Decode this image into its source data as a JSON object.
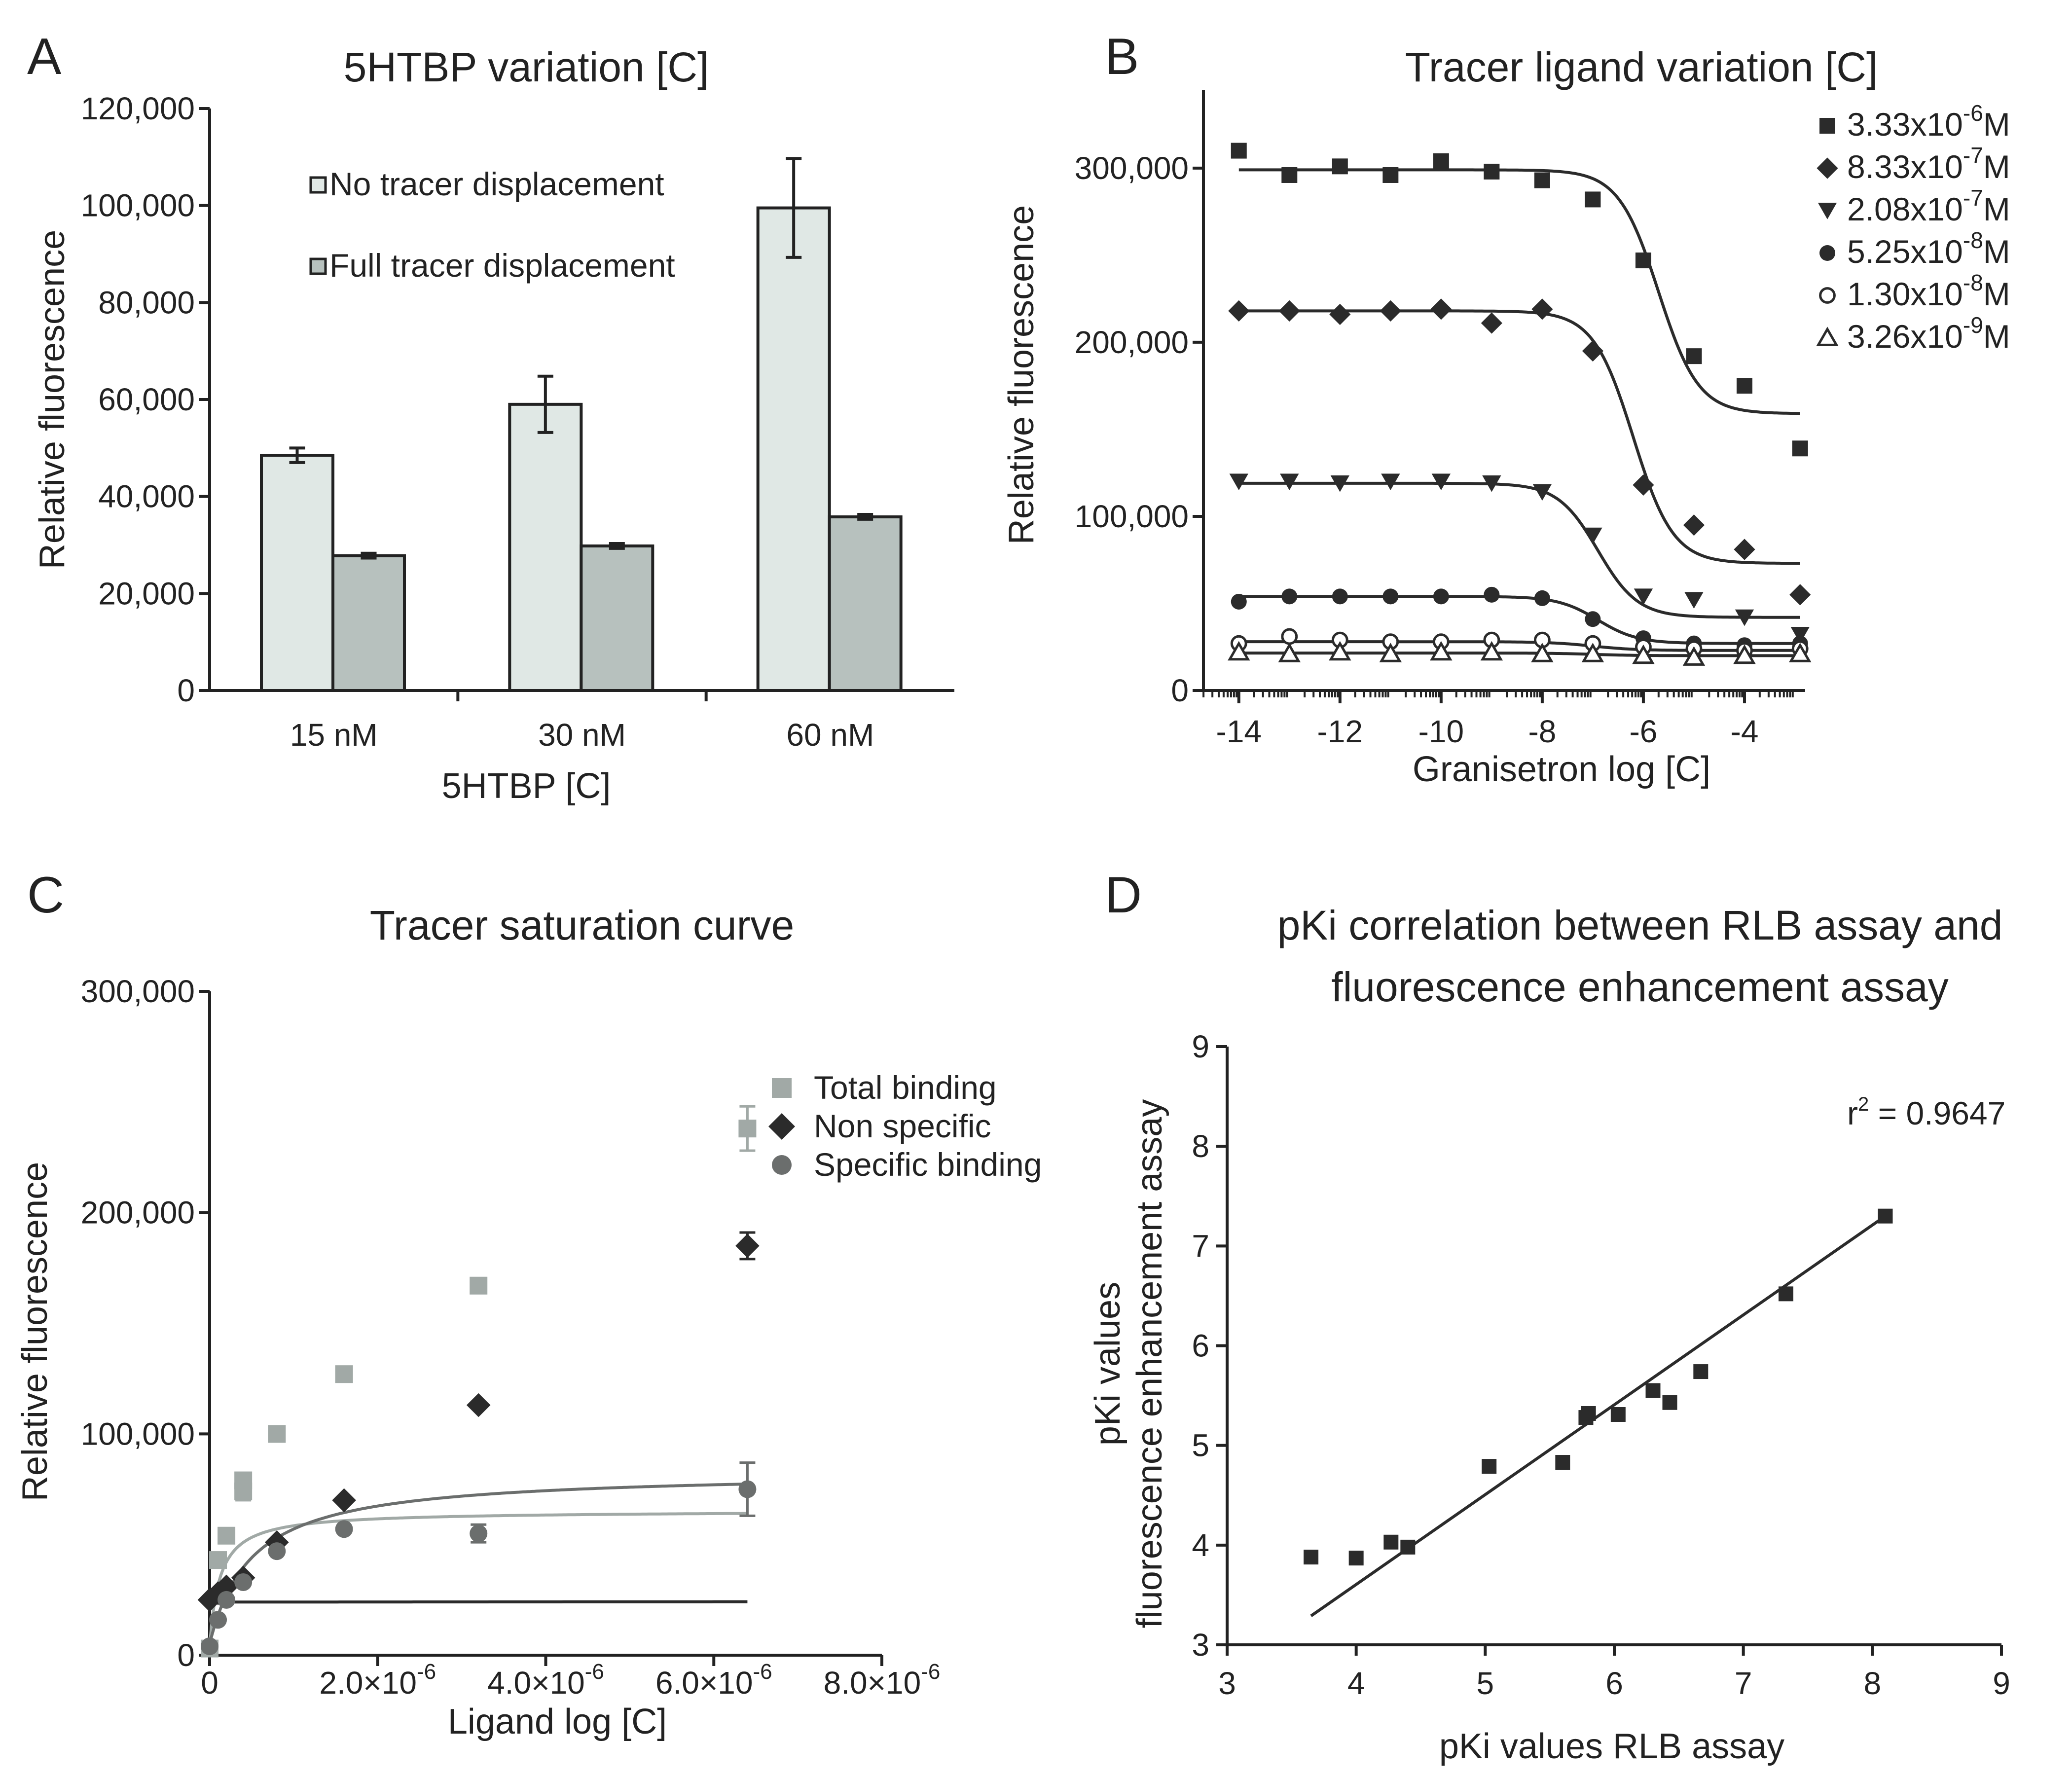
{
  "panels": {
    "A": "A",
    "B": "B",
    "C": "C",
    "D": "D"
  },
  "chart_data": [
    {
      "panel": "A",
      "type": "bar",
      "title": "5HTBP variation [C]",
      "xlabel": "5HTBP [C]",
      "ylabel": "Relative fluorescence",
      "categories": [
        "15 nM",
        "30 nM",
        "60 nM"
      ],
      "series": [
        {
          "name": "No tracer displacement",
          "color": "#e0e8e5",
          "values": [
            48500,
            59000,
            99500
          ],
          "errors": [
            1500,
            5800,
            10200
          ]
        },
        {
          "name": "Full tracer displacement",
          "color": "#b7c1be",
          "values": [
            27800,
            29800,
            35800
          ],
          "errors": [
            500,
            500,
            500
          ]
        }
      ],
      "ylim": [
        0,
        120000
      ],
      "yticks": [
        0,
        20000,
        40000,
        60000,
        80000,
        100000,
        120000
      ],
      "ytick_labels": [
        "0",
        "20,000",
        "40,000",
        "60,000",
        "80,000",
        "100,000",
        "120,000"
      ]
    },
    {
      "panel": "B",
      "type": "scatter",
      "title": "Tracer ligand variation [C]",
      "xlabel": "Granisetron log [C]",
      "ylabel": "Relative fluorescence",
      "x": [
        -14,
        -13,
        -12,
        -11,
        -10,
        -9,
        -8,
        -7,
        -6,
        -5,
        -4,
        -2.9
      ],
      "xlim": [
        -14.7,
        -2.8
      ],
      "ylim": [
        0,
        345000
      ],
      "xticks": [
        -14,
        -12,
        -10,
        -8,
        -6,
        -4
      ],
      "xtick_labels": [
        "-14",
        "-12",
        "-10",
        "-8",
        "-6",
        "-4"
      ],
      "yticks": [
        0,
        100000,
        200000,
        300000
      ],
      "ytick_labels": [
        "0",
        "100,000",
        "200,000",
        "300,000"
      ],
      "series": [
        {
          "name": "3.33x10",
          "exp": "-6",
          "unit": "M",
          "marker": "square",
          "values": [
            310000,
            296000,
            301000,
            296000,
            304000,
            298000,
            293000,
            282000,
            247000,
            192000,
            175000,
            139000
          ],
          "fit": {
            "top": 299000,
            "bottom": 159000,
            "logEC50": -5.7,
            "slope": -1.1
          }
        },
        {
          "name": "8.33x10",
          "exp": "-7",
          "unit": "M",
          "marker": "diamond",
          "values": [
            218000,
            218000,
            216000,
            218000,
            219000,
            211000,
            219000,
            195000,
            118000,
            95000,
            81000,
            55000
          ],
          "fit": {
            "top": 218000,
            "bottom": 73000,
            "logEC50": -6.2,
            "slope": -1.1
          }
        },
        {
          "name": "2.08x10",
          "exp": "-7",
          "unit": "M",
          "marker": "triangle-down",
          "values": [
            120000,
            120000,
            119000,
            120000,
            120000,
            119000,
            114000,
            89000,
            54000,
            52000,
            42000,
            32000
          ],
          "fit": {
            "top": 119000,
            "bottom": 42000,
            "logEC50": -6.9,
            "slope": -1.1
          }
        },
        {
          "name": "5.25x10",
          "exp": "-8",
          "unit": "M",
          "marker": "circle",
          "values": [
            51000,
            54000,
            54000,
            54000,
            54000,
            55000,
            53000,
            41000,
            30000,
            27000,
            26000,
            27000
          ],
          "fit": {
            "top": 54000,
            "bottom": 27000,
            "logEC50": -6.9,
            "slope": -1.1
          }
        },
        {
          "name": "1.30x10",
          "exp": "-8",
          "unit": "M",
          "marker": "circle-open",
          "values": [
            27000,
            31000,
            29000,
            28000,
            28000,
            29000,
            29000,
            27000,
            25000,
            24000,
            23000,
            24000
          ],
          "fit": {
            "top": 28000,
            "bottom": 23000,
            "logEC50": -7.0,
            "slope": -1.0
          }
        },
        {
          "name": "3.26x10",
          "exp": "-9",
          "unit": "M",
          "marker": "triangle-open",
          "values": [
            22000,
            21000,
            22000,
            21000,
            22000,
            22000,
            21000,
            21000,
            20000,
            19000,
            20000,
            21000
          ],
          "fit": {
            "top": 21500,
            "bottom": 20000,
            "logEC50": -7.0,
            "slope": -1.0
          }
        }
      ]
    },
    {
      "panel": "C",
      "type": "scatter",
      "title": "Tracer saturation curve",
      "xlabel": "Ligand log [C]",
      "ylabel": "Relative fluorescence",
      "xlim": [
        0,
        8e-06
      ],
      "ylim": [
        0,
        300000
      ],
      "xticks": [
        0,
        2e-06,
        4e-06,
        6e-06,
        8e-06
      ],
      "xtick_labels": [
        {
          "mant": "0",
          "exp": ""
        },
        {
          "mant": "2.0×10",
          "exp": "-6"
        },
        {
          "mant": "4.0×10",
          "exp": "-6"
        },
        {
          "mant": "6.0×10",
          "exp": "-6"
        },
        {
          "mant": "8.0×10",
          "exp": "-6"
        }
      ],
      "yticks": [
        0,
        100000,
        200000,
        300000
      ],
      "ytick_labels": [
        "0",
        "100,000",
        "200,000",
        "300,000"
      ],
      "series": [
        {
          "name": "Total binding",
          "color": "#a1a9a6",
          "marker": "square",
          "x": [
            0.0,
            1e-07,
            2e-07,
            4e-07,
            4e-07,
            8e-07,
            1.6e-06,
            3.2e-06,
            6.4e-06
          ],
          "values": [
            3000,
            43000,
            54000,
            79000,
            74000,
            100000,
            127000,
            167000,
            238000
          ],
          "errors": [
            0,
            0,
            0,
            0,
            4000,
            0,
            0,
            0,
            10000
          ],
          "fit": {
            "bmax": 61000,
            "kd": 1.2e-07,
            "ns": 0.0284,
            "b0": 4000
          }
        },
        {
          "name": "Non specific",
          "color": "#2b2b2b",
          "marker": "diamond",
          "x": [
            0.0,
            1e-07,
            2e-07,
            4e-07,
            8e-07,
            1.6e-06,
            3.2e-06,
            6.4e-06
          ],
          "values": [
            25000,
            28000,
            31000,
            35000,
            51000,
            70000,
            113000,
            185000
          ],
          "errors": [
            0,
            0,
            0,
            0,
            0,
            0,
            0,
            6000
          ],
          "fit": {
            "slope": 0.0249,
            "intercept": 24000
          }
        },
        {
          "name": "Specific binding",
          "color": "#6b6e6d",
          "marker": "circle",
          "x": [
            0.0,
            1e-07,
            2e-07,
            4e-07,
            8e-07,
            1.6e-06,
            3.2e-06,
            6.4e-06
          ],
          "values": [
            4000,
            16000,
            25000,
            33000,
            47000,
            57000,
            55000,
            75000
          ],
          "errors": [
            0,
            0,
            0,
            0,
            0,
            0,
            4000,
            12000
          ],
          "fit": {
            "bmax": 78000,
            "kd": 5e-07,
            "b0": 5000
          }
        }
      ]
    },
    {
      "panel": "D",
      "type": "scatter",
      "title_lines": [
        "pKi correlation between RLB assay and",
        "fluorescence enhancement assay"
      ],
      "xlabel": "pKi values RLB assay",
      "ylabel_lines": [
        "pKi values",
        "fluorescence enhancement assay"
      ],
      "annotation": {
        "prefix": "r",
        "sup": "2",
        "text": " = 0.9647"
      },
      "xlim": [
        3,
        9
      ],
      "ylim": [
        3,
        9
      ],
      "xticks": [
        3,
        4,
        5,
        6,
        7,
        8,
        9
      ],
      "yticks": [
        3,
        4,
        5,
        6,
        7,
        8,
        9
      ],
      "x": [
        3.65,
        4.0,
        4.27,
        4.4,
        5.03,
        5.6,
        5.78,
        5.8,
        6.03,
        6.3,
        6.43,
        6.67,
        7.33,
        8.1
      ],
      "values": [
        3.88,
        3.87,
        4.03,
        3.98,
        4.79,
        4.83,
        5.28,
        5.32,
        5.31,
        5.55,
        5.43,
        5.74,
        6.52,
        7.3
      ],
      "fit_line": {
        "x": [
          3.65,
          8.1
        ],
        "y": [
          3.29,
          7.3
        ]
      }
    }
  ]
}
